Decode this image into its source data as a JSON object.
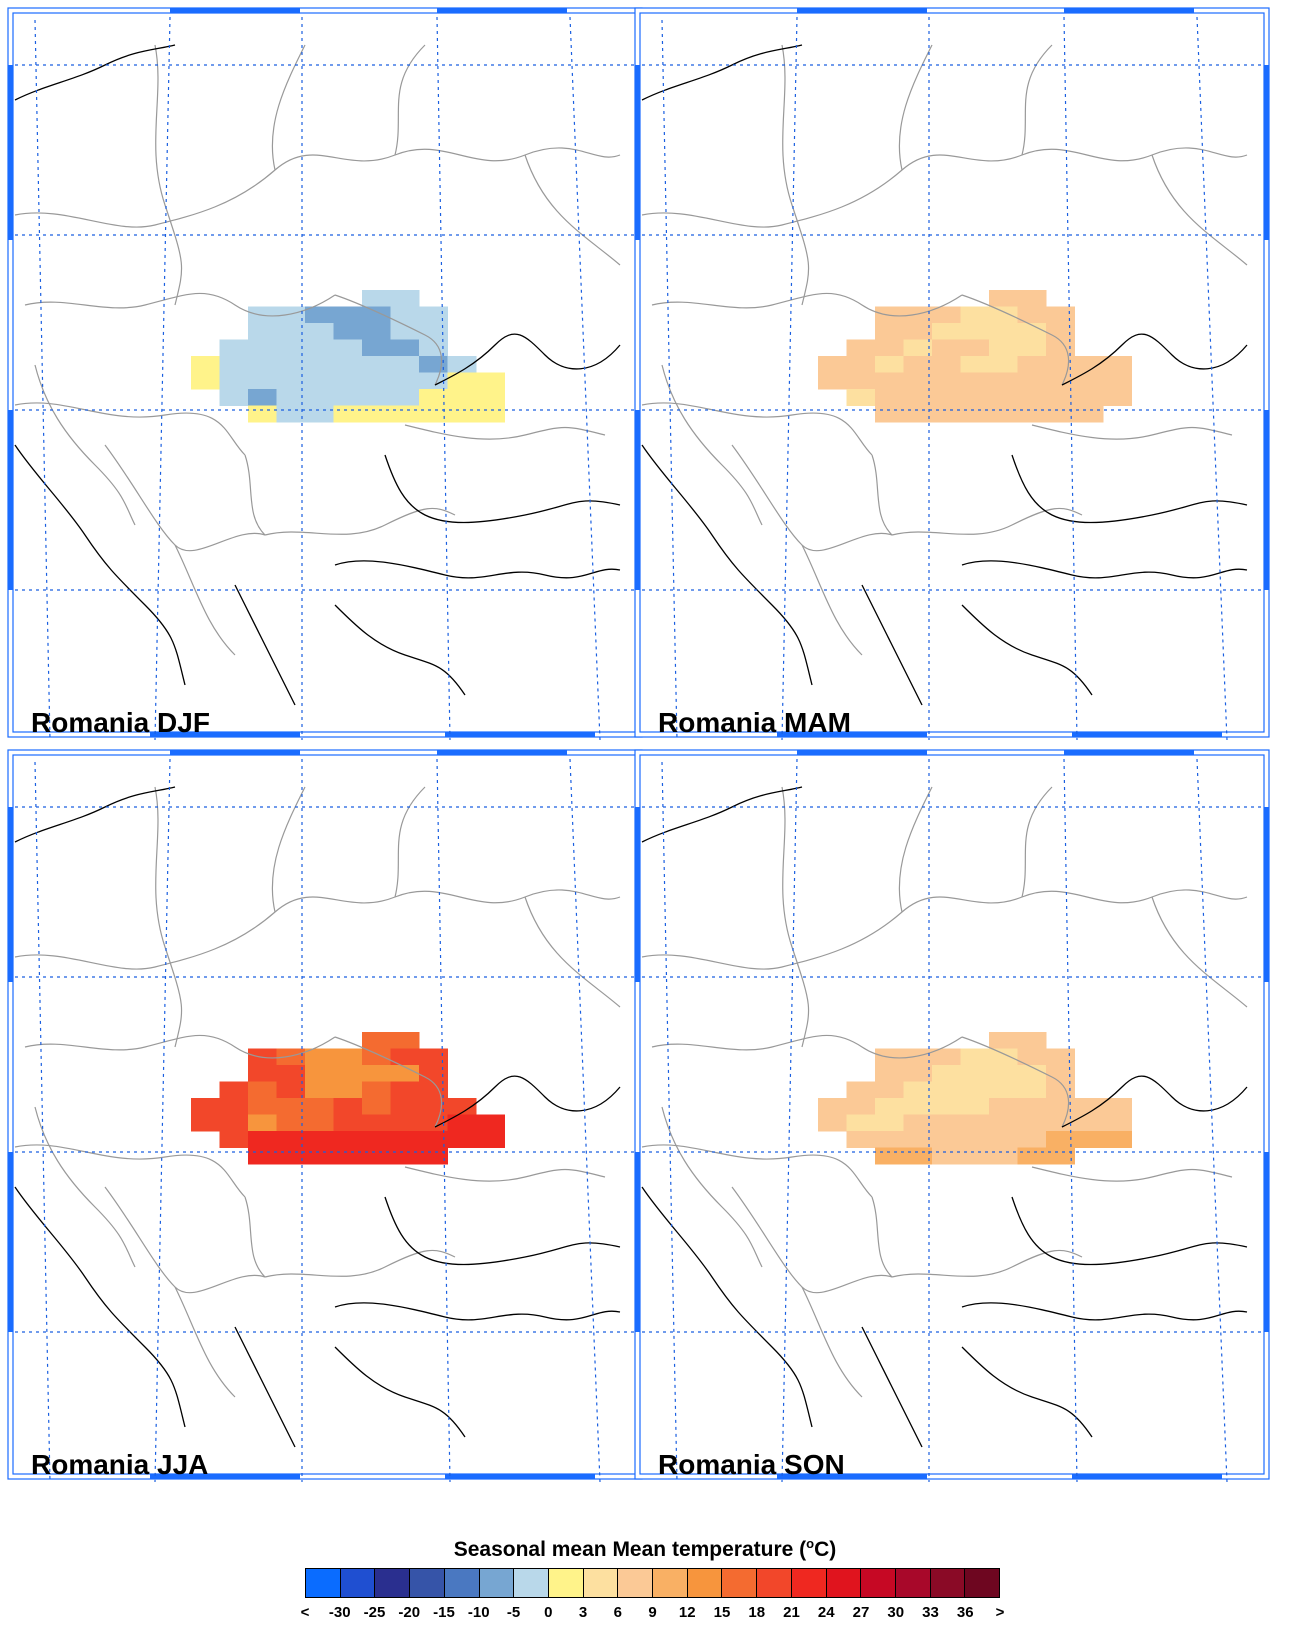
{
  "panels": [
    {
      "title": "Romania DJF",
      "season": "DJF"
    },
    {
      "title": "Romania MAM",
      "season": "MAM"
    },
    {
      "title": "Romania JJA",
      "season": "JJA"
    },
    {
      "title": "Romania SON",
      "season": "SON"
    }
  ],
  "colorbar": {
    "title_prefix": "Seasonal mean Mean temperature (",
    "title_degree": "o",
    "title_suffix": "C)",
    "labels": [
      "<",
      "-30",
      "-25",
      "-20",
      "-15",
      "-10",
      "-5",
      "0",
      "3",
      "6",
      "9",
      "12",
      "15",
      "18",
      "21",
      "24",
      "27",
      "30",
      "33",
      "36",
      ">"
    ],
    "colors": [
      "#0a6cff",
      "#1f4fd1",
      "#2a2f8f",
      "#3654a8",
      "#4a78c1",
      "#77a6d2",
      "#b9d8ea",
      "#fff38a",
      "#fde0a0",
      "#fbc996",
      "#f9b064",
      "#f7953d",
      "#f46b30",
      "#f2472a",
      "#ef2820",
      "#e0141e",
      "#c60824",
      "#a8082a",
      "#8a0a26",
      "#6e0620"
    ]
  },
  "colors": {
    "frame": "#1a6cff",
    "grid": "#1a5fe0",
    "borders": "#999999",
    "coast": "#000000"
  }
}
